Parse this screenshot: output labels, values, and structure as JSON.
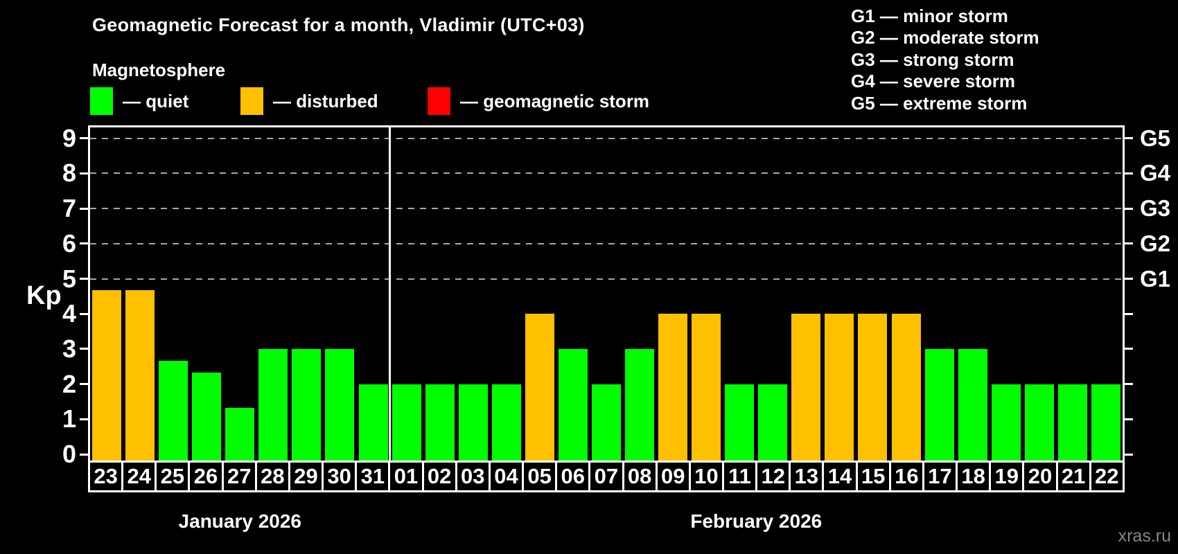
{
  "header": {
    "title": "Geomagnetic Forecast for a month, Vladimir (UTC+03)",
    "subtitle": "Magnetosphere"
  },
  "legend": {
    "items": [
      {
        "key": "quiet",
        "label": "— quiet"
      },
      {
        "key": "disturbed",
        "label": "— disturbed"
      },
      {
        "key": "storm",
        "label": "— geomagnetic storm"
      }
    ]
  },
  "g_scale_legend": {
    "lines": [
      "G1 — minor storm",
      "G2 — moderate storm",
      "G3 — strong storm",
      "G4 — severe storm",
      "G5 — extreme storm"
    ]
  },
  "colors": {
    "quiet": "#00ff00",
    "disturbed": "#ffc000",
    "storm": "#ff0000",
    "background": "#000000",
    "axis": "#ffffff",
    "grid": "#a8a8a8",
    "watermark": "#878787"
  },
  "watermark": "xras.ru",
  "chart_data": {
    "type": "bar",
    "title": "Geomagnetic Forecast for a month, Vladimir (UTC+03)",
    "ylabel": "Kp",
    "ylim": [
      0,
      9.4
    ],
    "y_ticks": [
      0,
      1,
      2,
      3,
      4,
      5,
      6,
      7,
      8,
      9
    ],
    "grid_levels": [
      5,
      6,
      7,
      8,
      9
    ],
    "grid_style": "dashed",
    "legend_position": "top",
    "right_axis_labels": [
      {
        "label": "G1",
        "level": 5
      },
      {
        "label": "G2",
        "level": 6
      },
      {
        "label": "G3",
        "level": 7
      },
      {
        "label": "G4",
        "level": 8
      },
      {
        "label": "G5",
        "level": 9
      }
    ],
    "months": [
      {
        "label": "January 2026",
        "start_index": 0,
        "days": 9
      },
      {
        "label": "February 2026",
        "start_index": 9,
        "days": 22
      }
    ],
    "categories": [
      "23",
      "24",
      "25",
      "26",
      "27",
      "28",
      "29",
      "30",
      "31",
      "01",
      "02",
      "03",
      "04",
      "05",
      "06",
      "07",
      "08",
      "09",
      "10",
      "11",
      "12",
      "13",
      "14",
      "15",
      "16",
      "17",
      "18",
      "19",
      "20",
      "21",
      "22"
    ],
    "values": [
      4.67,
      4.67,
      2.67,
      2.33,
      1.33,
      3,
      3,
      3,
      2,
      2,
      2,
      2,
      2,
      4,
      3,
      2,
      3,
      4,
      4,
      2,
      2,
      4,
      4,
      4,
      4,
      3,
      3,
      2,
      2,
      2,
      2
    ],
    "conditions": [
      "disturbed",
      "disturbed",
      "quiet",
      "quiet",
      "quiet",
      "quiet",
      "quiet",
      "quiet",
      "quiet",
      "quiet",
      "quiet",
      "quiet",
      "quiet",
      "disturbed",
      "quiet",
      "quiet",
      "quiet",
      "disturbed",
      "disturbed",
      "quiet",
      "quiet",
      "disturbed",
      "disturbed",
      "disturbed",
      "disturbed",
      "quiet",
      "quiet",
      "quiet",
      "quiet",
      "quiet",
      "quiet"
    ]
  }
}
